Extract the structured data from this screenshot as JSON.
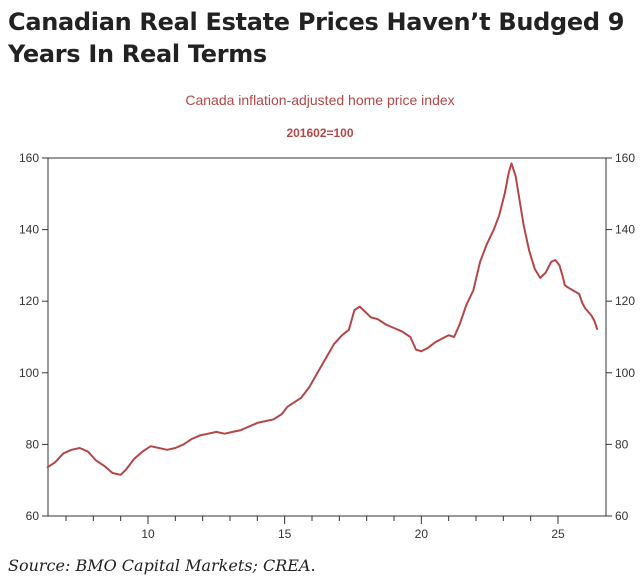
{
  "headline": "Canadian Real Estate Prices Haven’t Budged 9 Years In Real Terms",
  "source": "Source: BMO Capital Markets; CREA.",
  "chart_data": {
    "type": "line",
    "title": "Canada inflation-adjusted home price index",
    "subtitle": "201602=100",
    "xlabel": "",
    "ylabel": "",
    "xlim": [
      6.3,
      26.0
    ],
    "ylim": [
      60,
      160
    ],
    "xticks": [
      10,
      15,
      20,
      25
    ],
    "yticks": [
      60,
      80,
      100,
      120,
      140,
      160
    ],
    "grid": false,
    "color": "#b34747",
    "series": [
      {
        "values": [
          [
            6.3,
            73.5
          ],
          [
            6.6,
            75
          ],
          [
            6.9,
            77.5
          ],
          [
            7.2,
            78.5
          ],
          [
            7.5,
            79
          ],
          [
            7.8,
            78
          ],
          [
            8.1,
            75.5
          ],
          [
            8.4,
            74
          ],
          [
            8.7,
            72
          ],
          [
            9.0,
            71.5
          ],
          [
            9.2,
            73
          ],
          [
            9.5,
            76
          ],
          [
            9.8,
            78
          ],
          [
            10.1,
            79.5
          ],
          [
            10.4,
            79
          ],
          [
            10.7,
            78.5
          ],
          [
            11.0,
            79
          ],
          [
            11.3,
            80
          ],
          [
            11.6,
            81.5
          ],
          [
            11.9,
            82.5
          ],
          [
            12.2,
            83
          ],
          [
            12.5,
            83.5
          ],
          [
            12.8,
            83
          ],
          [
            13.1,
            83.5
          ],
          [
            13.4,
            84
          ],
          [
            13.7,
            85
          ],
          [
            14.0,
            86
          ],
          [
            14.3,
            86.5
          ],
          [
            14.6,
            87
          ],
          [
            14.9,
            88.5
          ],
          [
            15.1,
            90.5
          ],
          [
            15.3,
            91.5
          ],
          [
            15.6,
            93
          ],
          [
            15.9,
            96
          ],
          [
            16.2,
            100
          ],
          [
            16.5,
            104
          ],
          [
            16.8,
            108
          ],
          [
            17.1,
            110.5
          ],
          [
            17.35,
            112
          ],
          [
            17.55,
            117.5
          ],
          [
            17.75,
            118.5
          ],
          [
            17.95,
            117
          ],
          [
            18.15,
            115.5
          ],
          [
            18.4,
            115
          ],
          [
            18.7,
            113.5
          ],
          [
            19.0,
            112.5
          ],
          [
            19.3,
            111.5
          ],
          [
            19.6,
            110
          ],
          [
            19.8,
            106.5
          ],
          [
            20.0,
            106
          ],
          [
            20.25,
            107
          ],
          [
            20.5,
            108.5
          ],
          [
            20.75,
            109.5
          ],
          [
            21.0,
            110.5
          ],
          [
            21.2,
            110
          ],
          [
            21.4,
            113.5
          ],
          [
            21.65,
            119
          ],
          [
            21.9,
            123
          ],
          [
            22.15,
            131
          ],
          [
            22.4,
            136
          ],
          [
            22.65,
            140
          ],
          [
            22.85,
            144
          ],
          [
            23.05,
            150
          ],
          [
            23.2,
            156
          ],
          [
            23.3,
            158.5
          ],
          [
            23.45,
            155
          ],
          [
            23.6,
            148
          ],
          [
            23.75,
            141
          ],
          [
            23.95,
            134
          ],
          [
            24.15,
            129
          ],
          [
            24.35,
            126.5
          ],
          [
            24.55,
            128
          ],
          [
            24.75,
            131
          ],
          [
            24.9,
            131.5
          ],
          [
            25.1,
            130
          ],
          [
            25.3,
            127
          ],
          [
            25.45,
            124.5
          ],
          [
            25.6,
            124
          ],
          [
            25.8,
            123.5
          ],
          [
            26.0,
            123
          ],
          [
            26.2,
            122.5
          ],
          [
            26.4,
            122
          ],
          [
            26.6,
            119.5
          ],
          [
            26.8,
            118
          ],
          [
            27.0,
            117
          ],
          [
            27.2,
            116
          ],
          [
            27.4,
            114.5
          ],
          [
            27.6,
            112
          ]
        ]
      }
    ]
  }
}
